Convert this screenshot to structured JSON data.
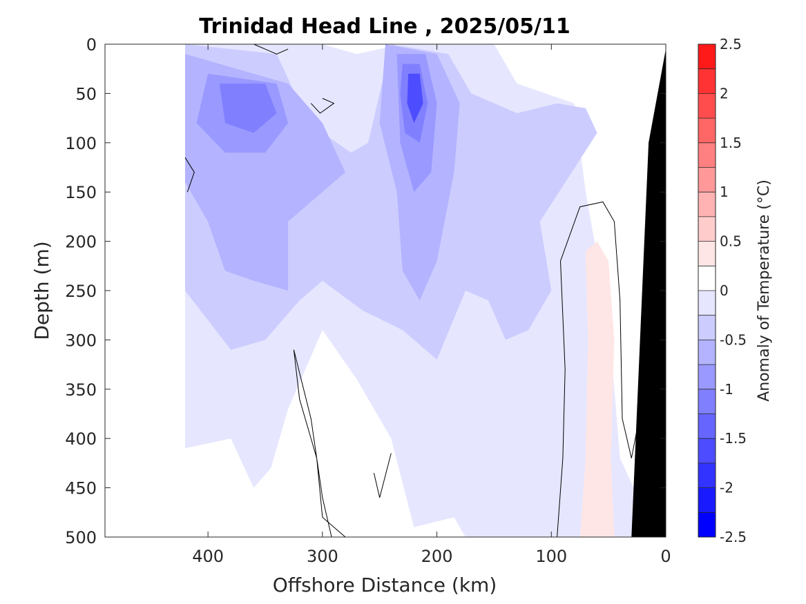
{
  "chart_data": {
    "type": "heatmap",
    "title": "Trinidad Head Line , 2025/05/11",
    "xlabel": "Offshore Distance (km)",
    "ylabel": "Depth (m)",
    "xlim": [
      490,
      0
    ],
    "ylim": [
      0,
      500
    ],
    "x_ticks": [
      "400",
      "300",
      "200",
      "100",
      "0"
    ],
    "x_tick_values": [
      400,
      300,
      200,
      100,
      0
    ],
    "y_ticks": [
      "0",
      "50",
      "100",
      "150",
      "200",
      "250",
      "300",
      "350",
      "400",
      "450",
      "500"
    ],
    "y_tick_values": [
      0,
      50,
      100,
      150,
      200,
      250,
      300,
      350,
      400,
      450,
      500
    ],
    "colorbar": {
      "label": "Anomaly of Temperature (°C)",
      "ticks": [
        "2.5",
        "2",
        "1.5",
        "1",
        "0.5",
        "0",
        "-0.5",
        "-1",
        "-1.5",
        "-2",
        "-2.5"
      ],
      "tick_values": [
        2.5,
        2,
        1.5,
        1,
        0.5,
        0,
        -0.5,
        -1,
        -1.5,
        -2,
        -2.5
      ],
      "range": [
        -2.5,
        2.5
      ],
      "levels": [
        -2.5,
        -2.25,
        -2,
        -1.75,
        -1.5,
        -1.25,
        -1,
        -0.75,
        -0.5,
        -0.25,
        0,
        0.25,
        0.5,
        0.75,
        1,
        1.25,
        1.5,
        1.75,
        2,
        2.25,
        2.5
      ],
      "colors": [
        "#0000ff",
        "#1a1aff",
        "#3333ff",
        "#4d4dff",
        "#6666ff",
        "#8080ff",
        "#9999ff",
        "#b3b3ff",
        "#ccccff",
        "#e6e6ff",
        "#ffffff",
        "#ffffff",
        "#ffe6e6",
        "#ffcccc",
        "#ffb3b3",
        "#ff9999",
        "#ff8080",
        "#ff6666",
        "#ff4d4d",
        "#ff3333",
        "#ff1a1a",
        "#ff0000"
      ]
    },
    "data_coverage_x": [
      0,
      420
    ],
    "regions": [
      {
        "level": -0.25,
        "color": "#e6e6ff",
        "points": [
          [
            420,
            0
          ],
          [
            300,
            0
          ],
          [
            270,
            10
          ],
          [
            230,
            0
          ],
          [
            150,
            0
          ],
          [
            130,
            40
          ],
          [
            80,
            60
          ],
          [
            70,
            150
          ],
          [
            50,
            280
          ],
          [
            40,
            420
          ],
          [
            20,
            470
          ],
          [
            5,
            130
          ],
          [
            0,
            30
          ],
          [
            0,
            500
          ],
          [
            175,
            500
          ],
          [
            185,
            480
          ],
          [
            220,
            490
          ],
          [
            240,
            400
          ],
          [
            270,
            340
          ],
          [
            300,
            290
          ],
          [
            330,
            370
          ],
          [
            345,
            430
          ],
          [
            360,
            450
          ],
          [
            380,
            400
          ],
          [
            420,
            410
          ]
        ]
      },
      {
        "level": -0.5,
        "color": "#ccccff",
        "points": [
          [
            420,
            0
          ],
          [
            340,
            10
          ],
          [
            320,
            60
          ],
          [
            300,
            90
          ],
          [
            275,
            110
          ],
          [
            260,
            100
          ],
          [
            240,
            0
          ],
          [
            190,
            10
          ],
          [
            170,
            50
          ],
          [
            130,
            70
          ],
          [
            95,
            60
          ],
          [
            70,
            65
          ],
          [
            60,
            90
          ],
          [
            110,
            180
          ],
          [
            100,
            250
          ],
          [
            120,
            290
          ],
          [
            140,
            300
          ],
          [
            155,
            260
          ],
          [
            175,
            250
          ],
          [
            200,
            320
          ],
          [
            230,
            290
          ],
          [
            265,
            270
          ],
          [
            300,
            240
          ],
          [
            320,
            260
          ],
          [
            350,
            300
          ],
          [
            380,
            310
          ],
          [
            400,
            280
          ],
          [
            420,
            250
          ]
        ]
      },
      {
        "level": -0.75,
        "color": "#b3b3ff",
        "points": [
          [
            420,
            10
          ],
          [
            330,
            40
          ],
          [
            300,
            80
          ],
          [
            280,
            130
          ],
          [
            330,
            180
          ],
          [
            330,
            250
          ],
          [
            360,
            240
          ],
          [
            385,
            230
          ],
          [
            400,
            180
          ],
          [
            420,
            140
          ]
        ]
      },
      {
        "level": -0.75,
        "color": "#b3b3ff",
        "points": [
          [
            245,
            0
          ],
          [
            200,
            10
          ],
          [
            180,
            60
          ],
          [
            185,
            130
          ],
          [
            200,
            220
          ],
          [
            215,
            260
          ],
          [
            230,
            230
          ],
          [
            235,
            150
          ],
          [
            250,
            80
          ]
        ]
      },
      {
        "level": -1.0,
        "color": "#9999ff",
        "points": [
          [
            400,
            30
          ],
          [
            340,
            40
          ],
          [
            330,
            80
          ],
          [
            350,
            110
          ],
          [
            385,
            110
          ],
          [
            410,
            80
          ]
        ]
      },
      {
        "level": -1.0,
        "color": "#9999ff",
        "points": [
          [
            235,
            10
          ],
          [
            210,
            10
          ],
          [
            200,
            60
          ],
          [
            205,
            130
          ],
          [
            220,
            150
          ],
          [
            232,
            100
          ]
        ]
      },
      {
        "level": -1.25,
        "color": "#8080ff",
        "points": [
          [
            390,
            40
          ],
          [
            350,
            40
          ],
          [
            340,
            70
          ],
          [
            360,
            90
          ],
          [
            385,
            80
          ]
        ]
      },
      {
        "level": -1.25,
        "color": "#8080ff",
        "points": [
          [
            230,
            20
          ],
          [
            215,
            20
          ],
          [
            208,
            60
          ],
          [
            215,
            100
          ],
          [
            228,
            90
          ],
          [
            232,
            50
          ]
        ]
      },
      {
        "level": -1.75,
        "color": "#4d4dff",
        "points": [
          [
            225,
            30
          ],
          [
            215,
            30
          ],
          [
            212,
            60
          ],
          [
            220,
            80
          ],
          [
            226,
            60
          ]
        ]
      },
      {
        "level": 0.25,
        "color": "#ffe6e6",
        "points": [
          [
            75,
            500
          ],
          [
            70,
            420
          ],
          [
            68,
            300
          ],
          [
            70,
            210
          ],
          [
            60,
            200
          ],
          [
            50,
            220
          ],
          [
            45,
            300
          ],
          [
            48,
            420
          ],
          [
            45,
            500
          ]
        ]
      }
    ],
    "zero_contours": [
      {
        "points": [
          [
            420,
            115
          ],
          [
            412,
            130
          ],
          [
            418,
            150
          ]
        ]
      },
      {
        "points": [
          [
            95,
            500
          ],
          [
            90,
            420
          ],
          [
            88,
            330
          ],
          [
            92,
            220
          ],
          [
            75,
            165
          ],
          [
            55,
            160
          ],
          [
            45,
            180
          ],
          [
            40,
            260
          ],
          [
            38,
            380
          ],
          [
            30,
            420
          ],
          [
            25,
            390
          ],
          [
            20,
            310
          ]
        ]
      },
      {
        "points": [
          [
            290,
            510
          ],
          [
            300,
            460
          ],
          [
            310,
            380
          ],
          [
            325,
            310
          ],
          [
            320,
            360
          ],
          [
            305,
            420
          ],
          [
            300,
            480
          ],
          [
            280,
            500
          ]
        ]
      },
      {
        "points": [
          [
            240,
            415
          ],
          [
            250,
            460
          ],
          [
            255,
            435
          ]
        ]
      },
      {
        "points": [
          [
            300,
            55
          ],
          [
            290,
            60
          ],
          [
            302,
            70
          ],
          [
            310,
            60
          ]
        ]
      },
      {
        "points": [
          [
            360,
            0
          ],
          [
            340,
            10
          ],
          [
            330,
            5
          ]
        ]
      }
    ],
    "land_mask": {
      "color": "#000000",
      "points": [
        [
          0,
          5
        ],
        [
          15,
          100
        ],
        [
          30,
          500
        ],
        [
          0,
          500
        ]
      ]
    }
  }
}
